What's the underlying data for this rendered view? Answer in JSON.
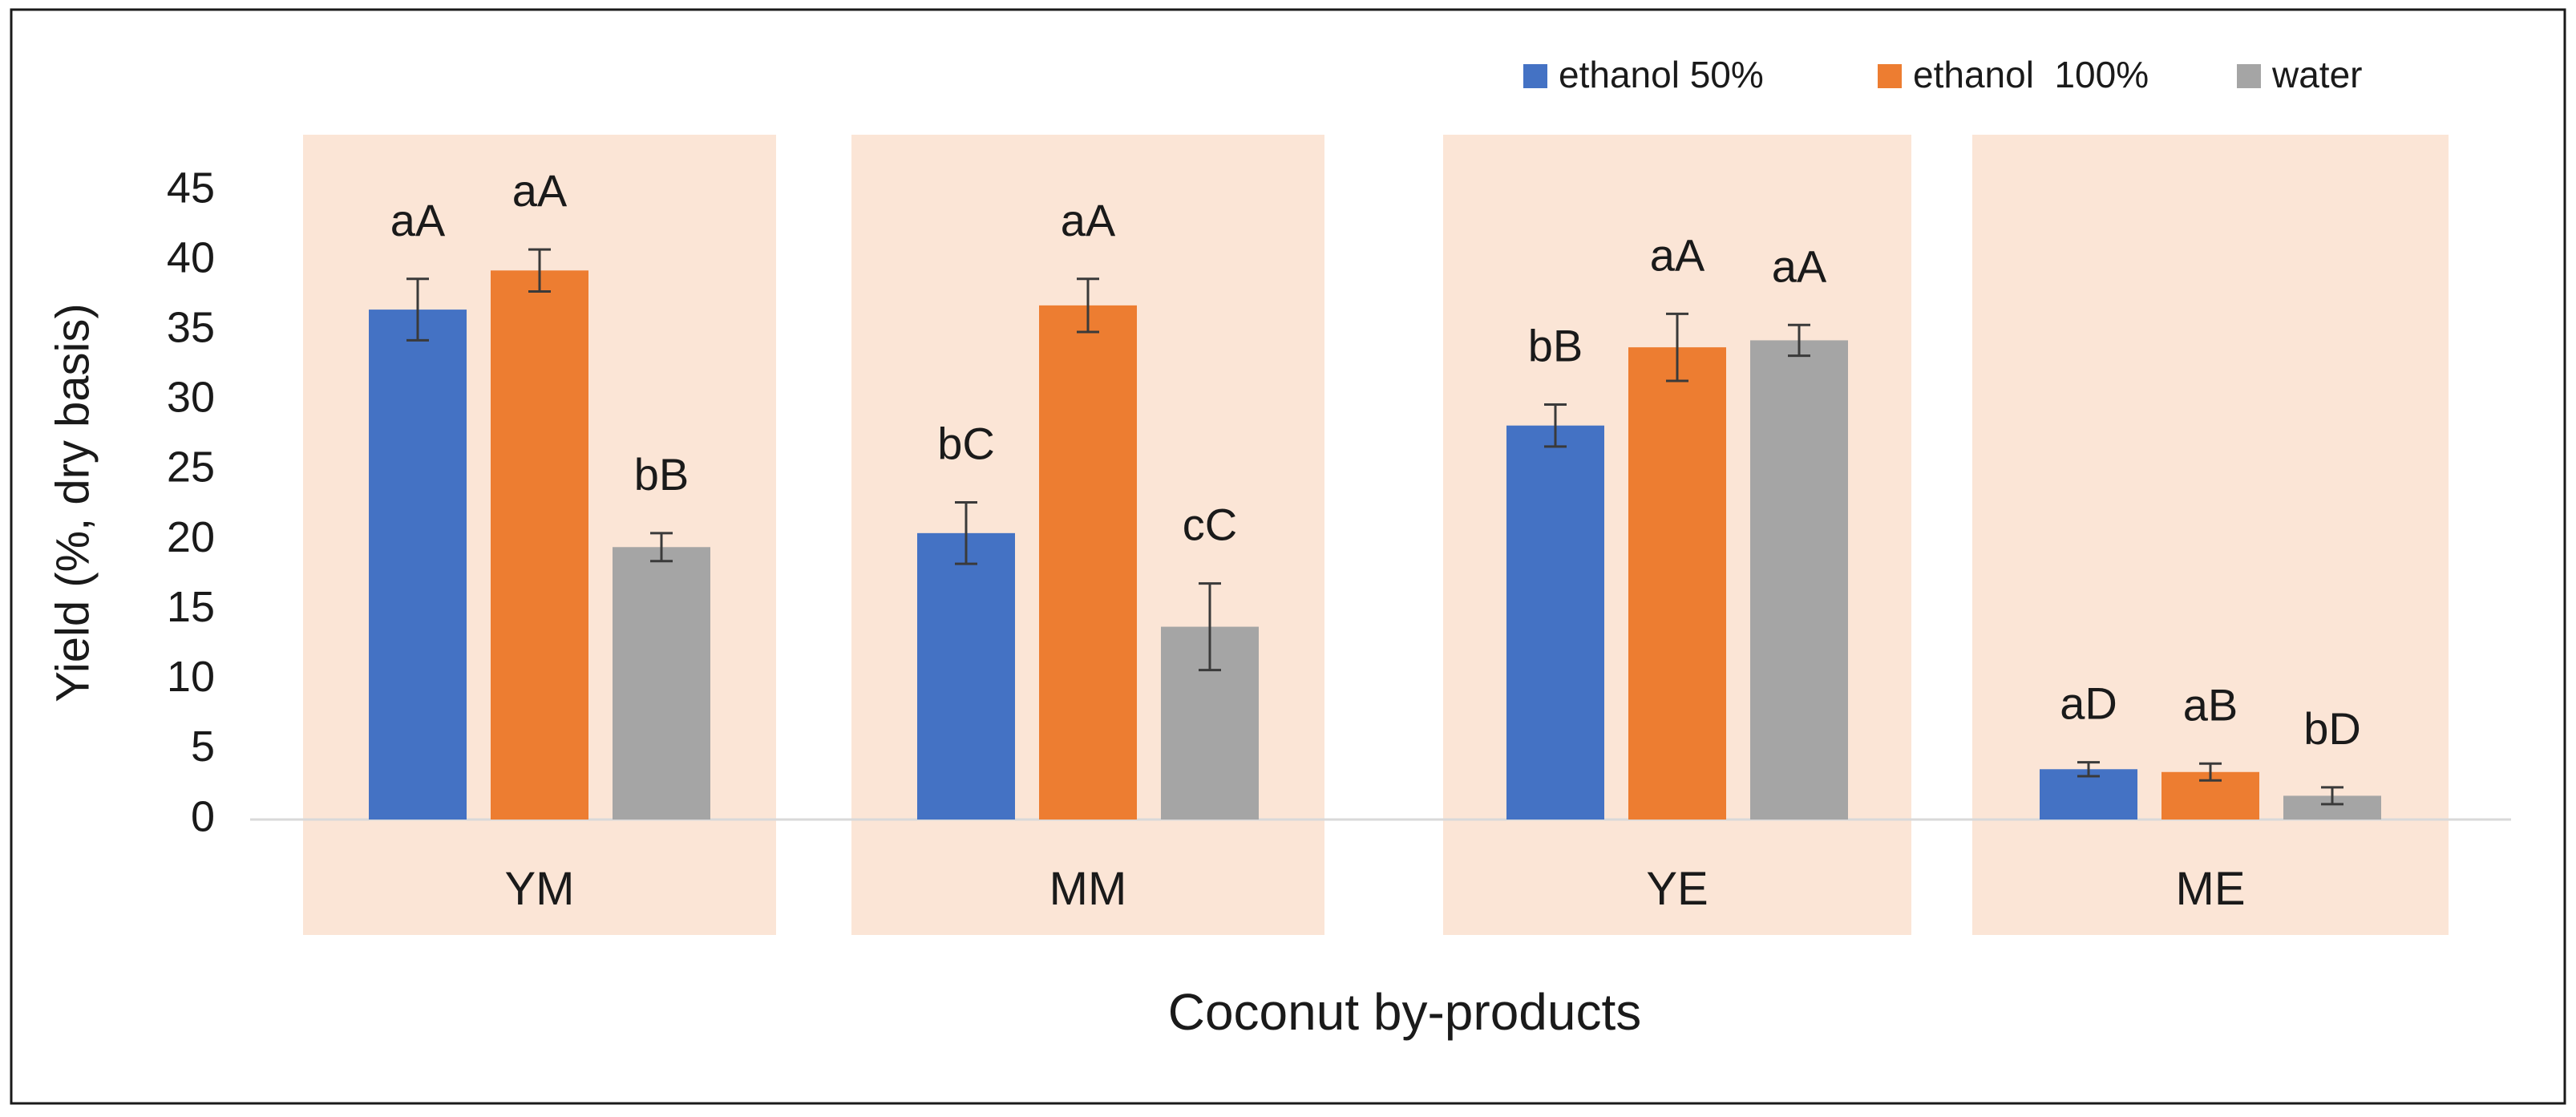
{
  "chart_data": {
    "type": "bar",
    "title": "",
    "xlabel": "Coconut by-products",
    "ylabel": "Yield (%, dry basis)",
    "ylim": [
      0,
      45
    ],
    "yticks": [
      0,
      5,
      10,
      15,
      20,
      25,
      30,
      35,
      40,
      45
    ],
    "grid": false,
    "legend_position": "top-right",
    "categories": [
      "YM",
      "MM",
      "YE",
      "ME"
    ],
    "series": [
      {
        "name": "ethanol 50%",
        "color": "#4472C4",
        "values": [
          36.5,
          20.5,
          28.2,
          3.6
        ],
        "errors": [
          2.2,
          2.2,
          1.5,
          0.5
        ],
        "labels": [
          "aA",
          "bC",
          "bB",
          "aD"
        ]
      },
      {
        "name": "ethanol  100%",
        "color": "#ED7D31",
        "values": [
          39.3,
          36.8,
          33.8,
          3.4
        ],
        "errors": [
          1.5,
          1.9,
          2.4,
          0.6
        ],
        "labels": [
          "aA",
          "aA",
          "aA",
          "aB"
        ]
      },
      {
        "name": "water",
        "color": "#A5A5A5",
        "values": [
          19.5,
          13.8,
          34.3,
          1.7
        ],
        "errors": [
          1.0,
          3.1,
          1.1,
          0.6
        ],
        "labels": [
          "bB",
          "cC",
          "aA",
          "bD"
        ]
      }
    ],
    "group_background_color": "#FBE5D6"
  }
}
